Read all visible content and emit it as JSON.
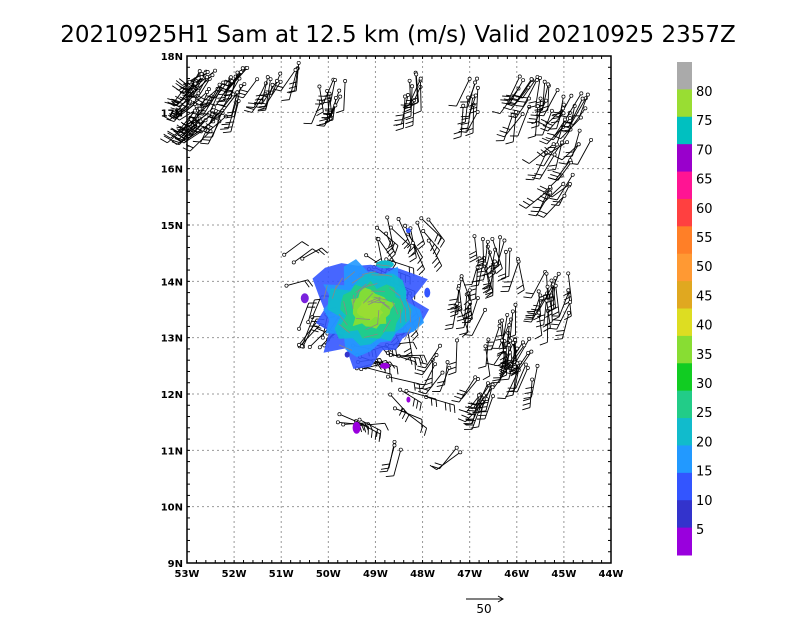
{
  "title": "20210925H1 Sam at 12.5 km (m/s) Valid 20210925 2357Z",
  "x_ticks": [
    "53W",
    "52W",
    "51W",
    "50W",
    "49W",
    "48W",
    "47W",
    "46W",
    "45W",
    "44W"
  ],
  "y_ticks": [
    "18N",
    "17N",
    "16N",
    "15N",
    "14N",
    "13N",
    "12N",
    "11N",
    "10N",
    "9N"
  ],
  "colorbar": {
    "labels": [
      "80",
      "75",
      "70",
      "65",
      "60",
      "55",
      "50",
      "45",
      "40",
      "35",
      "30",
      "25",
      "20",
      "15",
      "10",
      "5"
    ],
    "colors": [
      "#aaaaaa",
      "#99dd33",
      "#00c0c0",
      "#9900cc",
      "#ff1493",
      "#ff4040",
      "#ff7f27",
      "#ff9933",
      "#e0a820",
      "#dddd22",
      "#88dd33",
      "#11cc22",
      "#22cc88",
      "#11bbcc",
      "#2299ff",
      "#3355ff",
      "#3333cc",
      "#9900dd"
    ]
  },
  "reference_vector": {
    "label": "50"
  },
  "storm": {
    "name": "Sam",
    "center_lon": -49.1,
    "center_lat": 13.5
  }
}
